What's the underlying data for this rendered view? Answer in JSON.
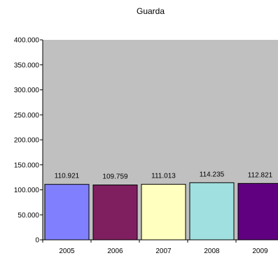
{
  "chart_data": {
    "type": "bar",
    "title": "Guarda",
    "xlabel": "",
    "ylabel": "",
    "categories": [
      "2005",
      "2006",
      "2007",
      "2008",
      "2009"
    ],
    "values": [
      110921,
      109759,
      111013,
      114235,
      112821
    ],
    "value_labels": [
      "110.921",
      "109.759",
      "111.013",
      "114.235",
      "112.821"
    ],
    "ylim": [
      0,
      400000
    ],
    "yticks": [
      0,
      50000,
      100000,
      150000,
      200000,
      250000,
      300000,
      350000,
      400000
    ],
    "ytick_labels": [
      "0",
      "50.000",
      "100.000",
      "150.000",
      "200.000",
      "250.000",
      "300.000",
      "350.000",
      "400.000"
    ],
    "grid": false,
    "legend": "none",
    "plot_background": "#c0c0c0",
    "bar_colors": [
      "#8080ff",
      "#7f1f5f",
      "#ffffc0",
      "#a0e0e0",
      "#600080"
    ]
  }
}
